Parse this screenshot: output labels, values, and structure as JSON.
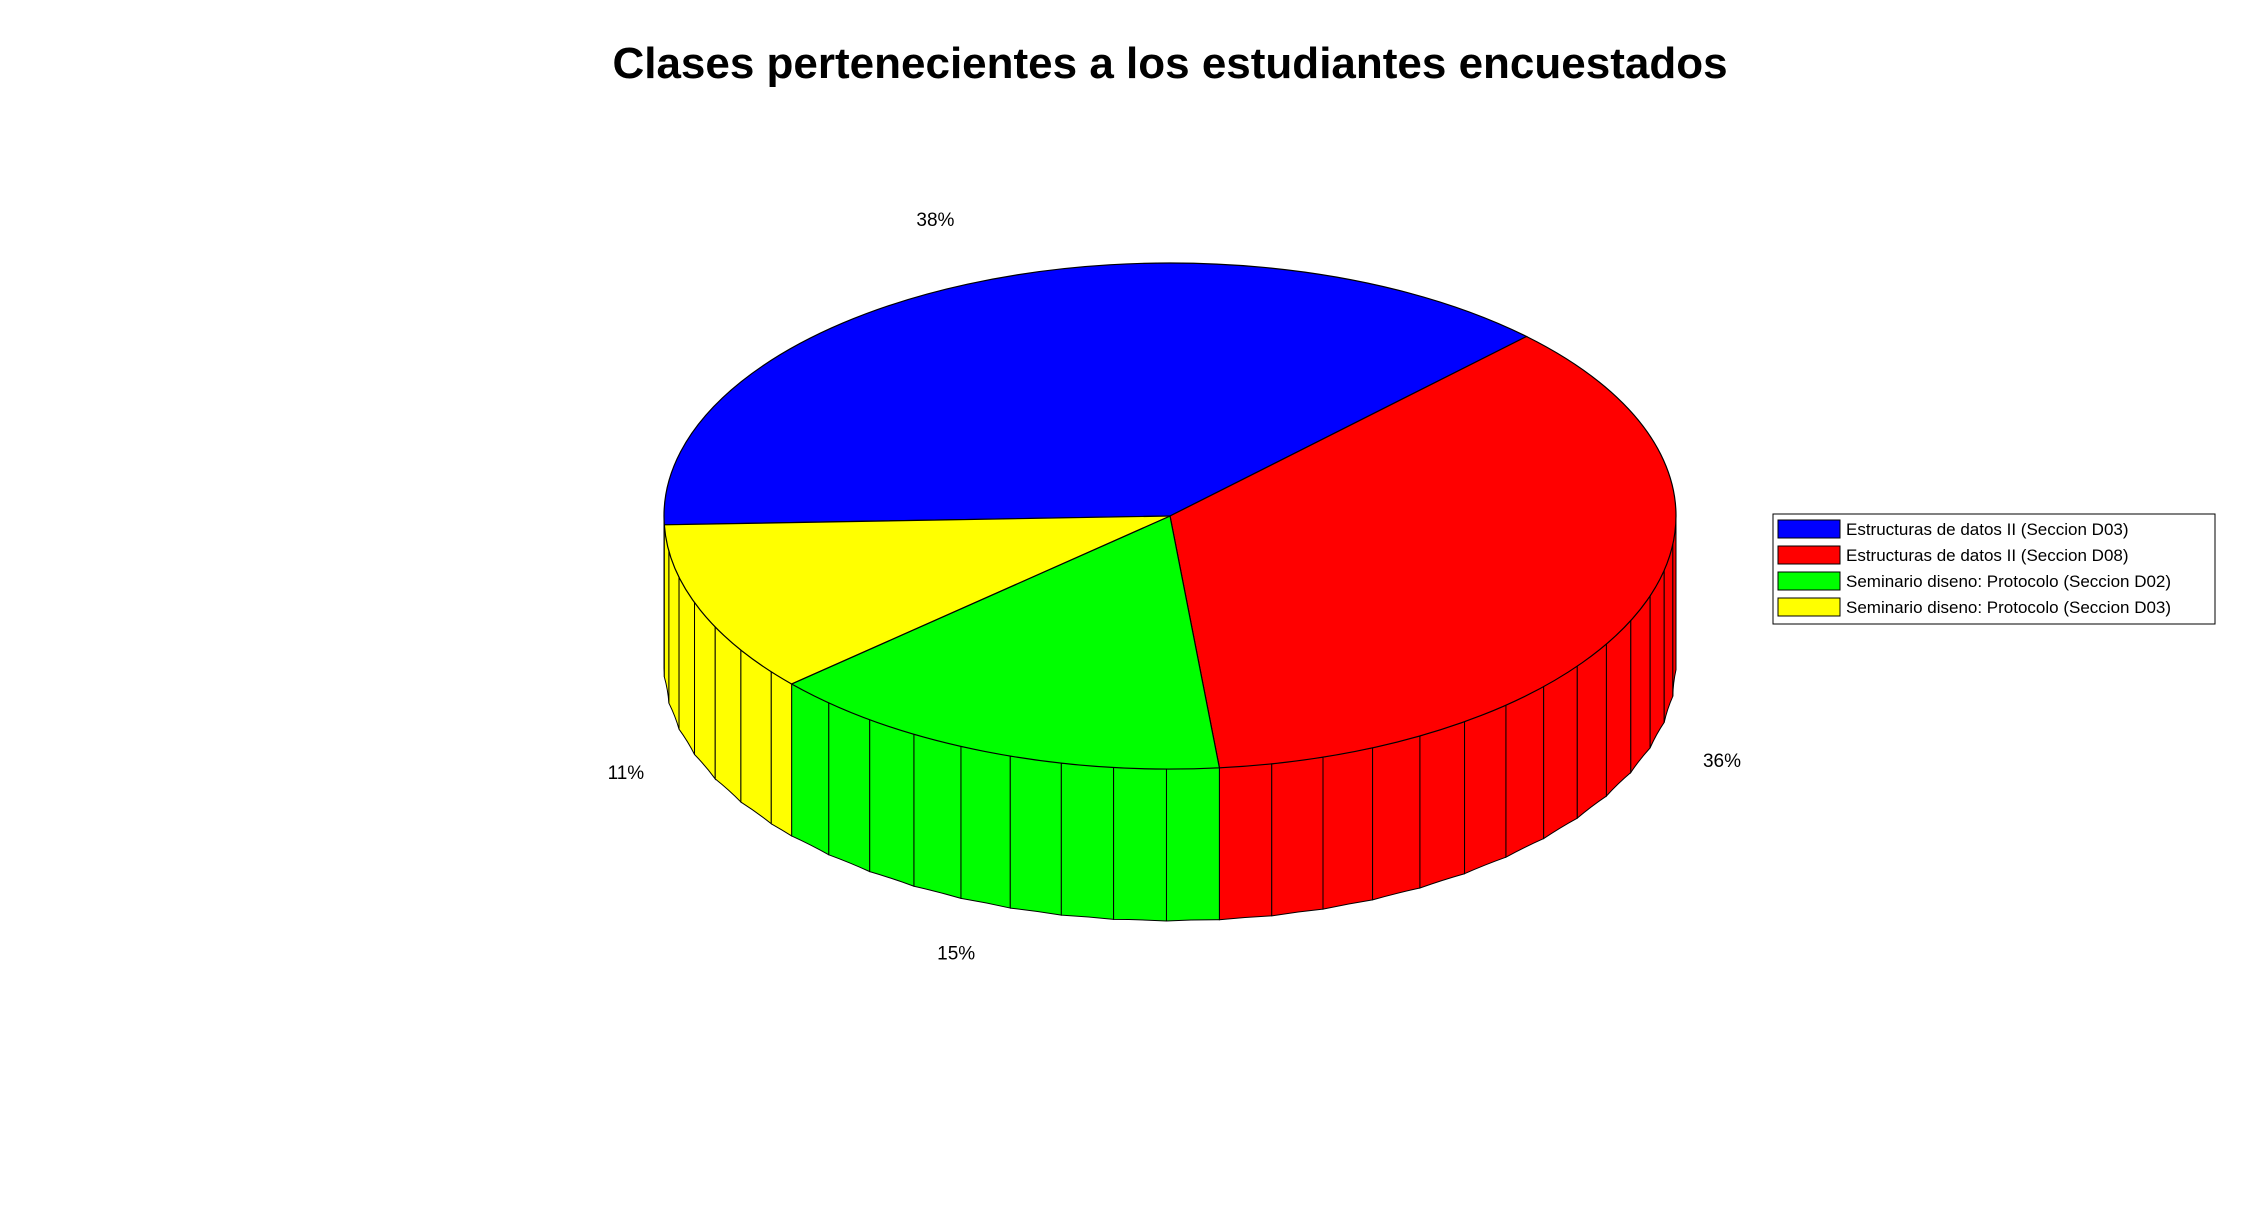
{
  "chart_data": {
    "type": "pie",
    "three_d": true,
    "title": "Clases pertenecientes a los estudiantes encuestados",
    "slices": [
      {
        "name": "Estructuras de datos II (Seccion D03)",
        "value": 38,
        "label": "38%",
        "color": "#0000ff"
      },
      {
        "name": "Estructuras de datos II (Seccion D08)",
        "value": 36,
        "label": "36%",
        "color": "#ff0000"
      },
      {
        "name": "Seminario diseno: Protocolo (Seccion D02)",
        "value": 15,
        "label": "15%",
        "color": "#00ff00"
      },
      {
        "name": "Seminario diseno: Protocolo (Seccion D03)",
        "value": 11,
        "label": "11%",
        "color": "#ffff00"
      }
    ],
    "legend_position": "right"
  }
}
